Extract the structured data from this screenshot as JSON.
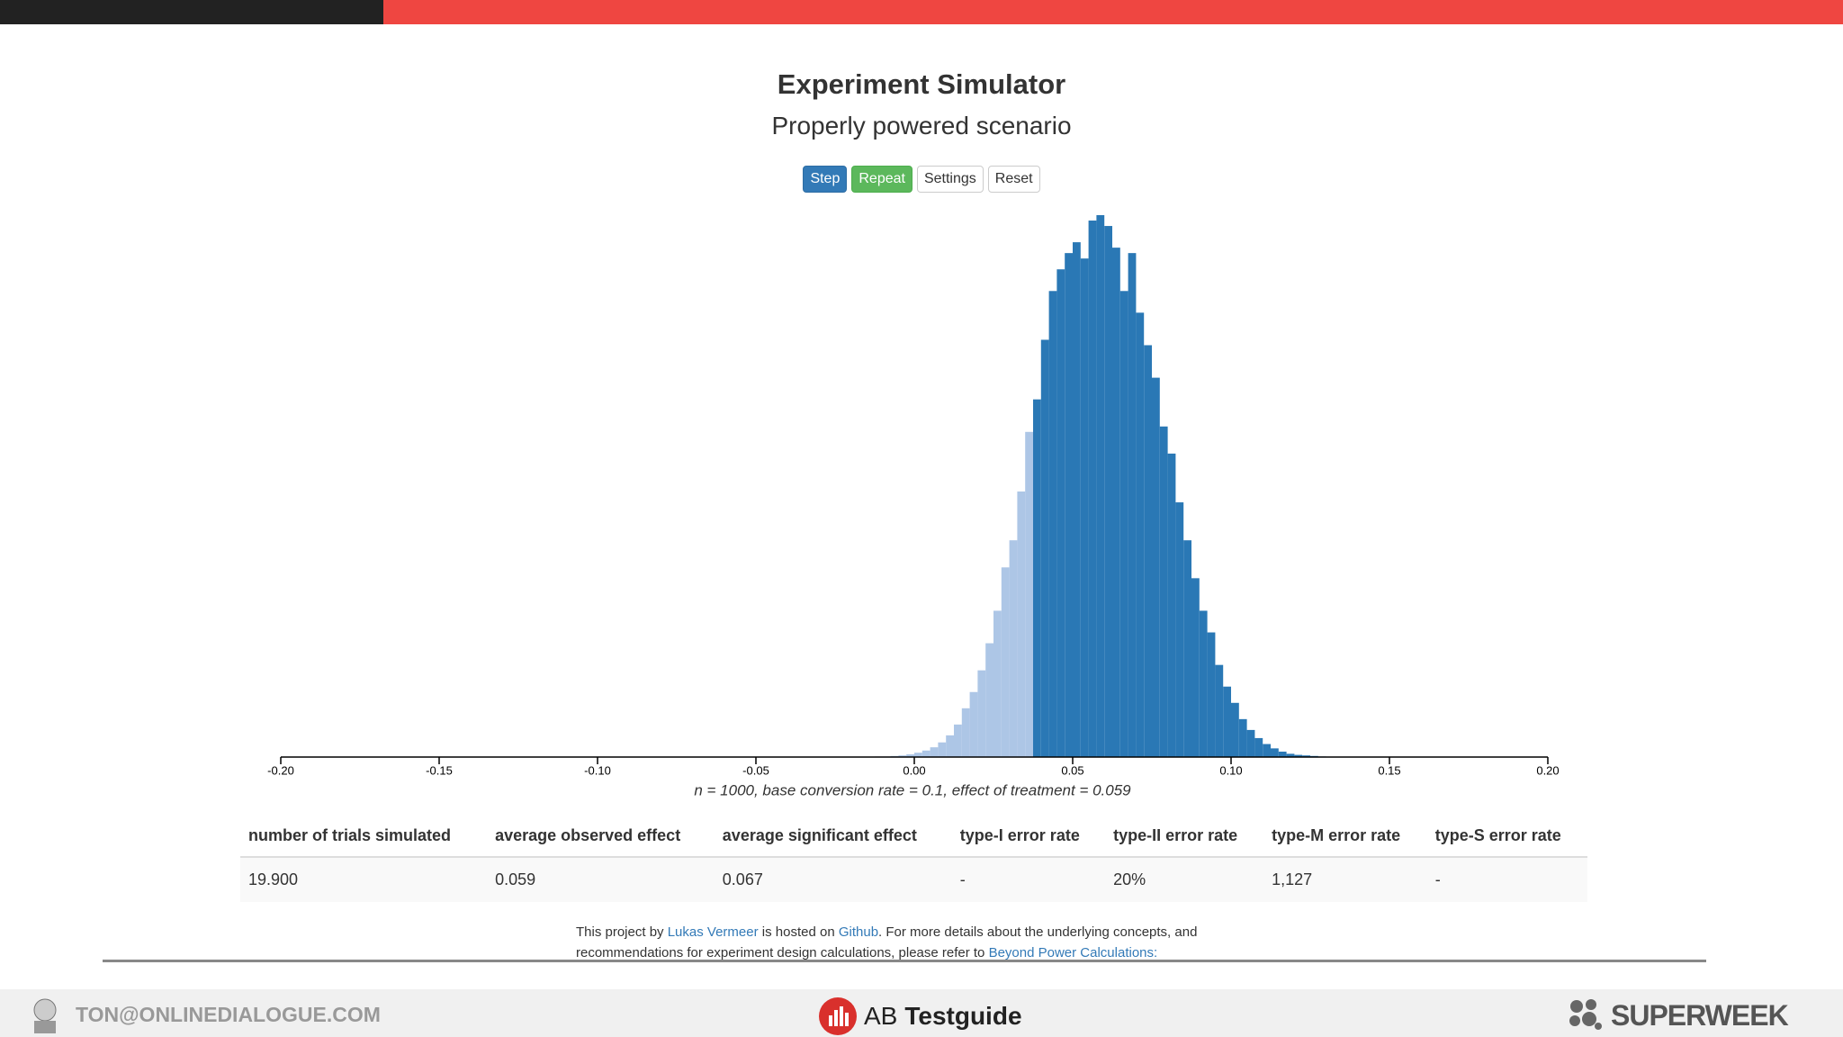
{
  "header": {
    "title": "Experiment Simulator",
    "subtitle": "Properly powered scenario",
    "buttons": [
      "Step",
      "Repeat",
      "Settings",
      "Reset"
    ]
  },
  "chart_data": {
    "type": "histogram",
    "x_label": "n = 1000, base conversion rate = 0.1, effect of treatment = 0.059",
    "bins": [
      -0.02,
      -0.0175,
      -0.015,
      -0.0125,
      -0.01,
      -0.0075,
      -0.005,
      -0.0025,
      0,
      0.0025,
      0.005,
      0.0075,
      0.01,
      0.0125,
      0.015,
      0.0175,
      0.02,
      0.0225,
      0.025,
      0.0275,
      0.03,
      0.0325,
      0.035,
      0.0375,
      0.04,
      0.0425,
      0.045,
      0.0475,
      0.05,
      0.0525,
      0.055,
      0.0575,
      0.06,
      0.0625,
      0.065,
      0.0675,
      0.07,
      0.0725,
      0.075,
      0.0775,
      0.08,
      0.0825,
      0.085,
      0.0875,
      0.09,
      0.0925,
      0.095,
      0.0975,
      0.1,
      0.1025,
      0.105,
      0.1075,
      0.11,
      0.1125,
      0.115,
      0.1175,
      0.12,
      0.1225,
      0.125,
      0.1275,
      0.13
    ],
    "values": [
      0,
      0,
      0,
      0.1,
      0.1,
      0.2,
      0.3,
      0.5,
      0.8,
      1.2,
      1.8,
      2.7,
      4,
      6,
      9,
      12,
      16,
      21,
      27,
      35,
      40,
      49,
      60,
      66,
      77,
      86,
      90,
      93,
      95,
      92,
      99,
      100,
      98,
      94,
      86,
      93,
      82,
      76,
      70,
      61,
      56,
      47,
      40,
      33,
      27,
      23,
      17,
      13,
      10,
      7,
      5,
      3.5,
      2.4,
      1.6,
      1,
      0.6,
      0.4,
      0.3,
      0.2,
      0.1
    ],
    "colors": [
      "#adc6e6",
      "#adc6e6",
      "#adc6e6",
      "#adc6e6",
      "#adc6e6",
      "#adc6e6",
      "#adc6e6",
      "#adc6e6",
      "#adc6e6",
      "#adc6e6",
      "#adc6e6",
      "#adc6e6",
      "#adc6e6",
      "#adc6e6",
      "#adc6e6",
      "#adc6e6",
      "#adc6e6",
      "#adc6e6",
      "#adc6e6",
      "#adc6e6",
      "#adc6e6",
      "#adc6e6",
      "#adc6e6",
      "#2a78b5",
      "#2a78b5",
      "#2a78b5",
      "#2a78b5",
      "#2a78b5",
      "#2a78b5",
      "#2a78b5",
      "#2a78b5",
      "#2a78b5",
      "#2a78b5",
      "#2a78b5",
      "#2a78b5",
      "#2a78b5",
      "#2a78b5",
      "#2a78b5",
      "#2a78b5",
      "#2a78b5",
      "#2a78b5",
      "#2a78b5",
      "#2a78b5",
      "#2a78b5",
      "#2a78b5",
      "#2a78b5",
      "#2a78b5",
      "#2a78b5",
      "#2a78b5",
      "#2a78b5",
      "#2a78b5",
      "#2a78b5",
      "#2a78b5",
      "#2a78b5",
      "#2a78b5",
      "#2a78b5",
      "#2a78b5",
      "#2a78b5",
      "#2a78b5",
      "#2a78b5"
    ],
    "xlim": [
      -0.2,
      0.2
    ],
    "ylim": [
      0,
      100
    ],
    "xticks": [
      {
        "value": -0.2,
        "label": "-0.20"
      },
      {
        "value": -0.15,
        "label": "-0.15"
      },
      {
        "value": -0.1,
        "label": "-0.10"
      },
      {
        "value": -0.05,
        "label": "-0.05"
      },
      {
        "value": 0,
        "label": "0.00"
      },
      {
        "value": 0.05,
        "label": "0.05"
      },
      {
        "value": 0.1,
        "label": "0.10"
      },
      {
        "value": 0.15,
        "label": "0.15"
      },
      {
        "value": 0.2,
        "label": "0.20"
      }
    ]
  },
  "table": {
    "header": [
      "number of trials simulated",
      "average observed effect",
      "average significant effect",
      "type-I error rate",
      "type-II error rate",
      "type-M error rate",
      "type-S error rate"
    ],
    "rows": [
      [
        "19.900",
        "0.059",
        "0.067",
        "-",
        "20%",
        "1,127",
        "-"
      ]
    ]
  },
  "footer": {
    "text_1": "This project by",
    "author": "Lukas Vermeer",
    "text_2": "is hosted on",
    "repo": "Github",
    "text_3": ". For more details about the underlying concepts, and",
    "line_2": "recommendations for experiment design calculations, please refer to",
    "link": "Beyond Power Calculations:"
  },
  "bottom_bar": {
    "email": "TON@ONLINEDIALOGUE.COM",
    "brand_1": "AB",
    "brand_2": "Testguide",
    "event": "SUPERWEEK"
  }
}
